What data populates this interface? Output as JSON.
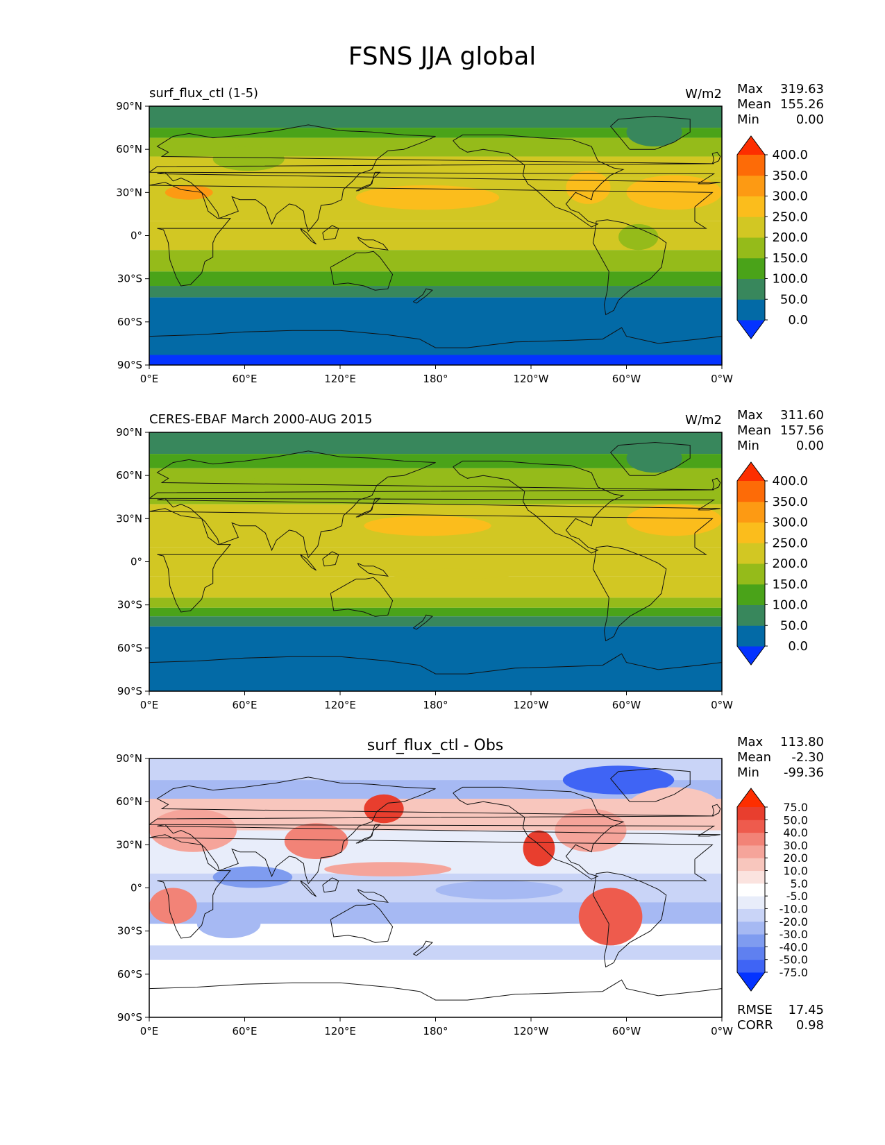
{
  "figure": {
    "title": "FSNS JJA global"
  },
  "chart_data": [
    {
      "type": "heatmap",
      "title": "surf_flux_ctl (1-5)",
      "units": "W/m2",
      "stats": [
        {
          "label": "Max",
          "value": "319.63"
        },
        {
          "label": "Mean",
          "value": "155.26"
        },
        {
          "label": "Min",
          "value": "0.00"
        }
      ],
      "xlim": [
        0,
        360
      ],
      "ylim": [
        -90,
        90
      ],
      "xticks": [
        "0°E",
        "60°E",
        "120°E",
        "180°",
        "120°W",
        "60°W",
        "0°W"
      ],
      "yticks": [
        "90°N",
        "60°N",
        "30°N",
        "0°",
        "30°S",
        "60°S",
        "90°S"
      ],
      "colorbar": {
        "levels": [
          "0.0",
          "50.0",
          "100.0",
          "150.0",
          "200.0",
          "250.0",
          "300.0",
          "350.0",
          "400.0"
        ],
        "colors": [
          "#0433ff",
          "#036aa6",
          "#38875c",
          "#4aa319",
          "#95bb1a",
          "#d2c723",
          "#fbbd1c",
          "#fd9a13",
          "#fd6b07",
          "#fd2e00"
        ]
      },
      "latitude_bands": [
        {
          "lat": [
            75,
            90
          ],
          "value": 80
        },
        {
          "lat": [
            68,
            75
          ],
          "value": 130
        },
        {
          "lat": [
            55,
            68
          ],
          "value": 160
        },
        {
          "lat": [
            40,
            55
          ],
          "value": 205
        },
        {
          "lat": [
            10,
            40
          ],
          "value": 235
        },
        {
          "lat": [
            -10,
            10
          ],
          "value": 205
        },
        {
          "lat": [
            -25,
            -10
          ],
          "value": 175
        },
        {
          "lat": [
            -35,
            -25
          ],
          "value": 130
        },
        {
          "lat": [
            -43,
            -35
          ],
          "value": 80
        },
        {
          "lat": [
            -83,
            -43
          ],
          "value": 30
        },
        {
          "lat": [
            -90,
            -83
          ],
          "value": -5
        }
      ],
      "features": [
        {
          "lon": [
            130,
            220
          ],
          "lat": [
            18,
            35
          ],
          "value": 265
        },
        {
          "lon": [
            300,
            360
          ],
          "lat": [
            18,
            42
          ],
          "value": 265
        },
        {
          "lon": [
            262,
            290
          ],
          "lat": [
            22,
            45
          ],
          "value": 265
        },
        {
          "lon": [
            10,
            40
          ],
          "lat": [
            25,
            35
          ],
          "value": 310
        },
        {
          "lon": [
            40,
            85
          ],
          "lat": [
            45,
            62
          ],
          "value": 160
        },
        {
          "lon": [
            300,
            335
          ],
          "lat": [
            62,
            82
          ],
          "value": 80
        },
        {
          "lon": [
            295,
            320
          ],
          "lat": [
            -10,
            8
          ],
          "value": 175
        }
      ]
    },
    {
      "type": "heatmap",
      "title": "CERES-EBAF March 2000-AUG 2015",
      "units": "W/m2",
      "stats": [
        {
          "label": "Max",
          "value": "311.60"
        },
        {
          "label": "Mean",
          "value": "157.56"
        },
        {
          "label": "Min",
          "value": "0.00"
        }
      ],
      "xlim": [
        0,
        360
      ],
      "ylim": [
        -90,
        90
      ],
      "xticks": [
        "0°E",
        "60°E",
        "120°E",
        "180°",
        "120°W",
        "60°W",
        "0°W"
      ],
      "yticks": [
        "90°N",
        "60°N",
        "30°N",
        "0°",
        "30°S",
        "60°S",
        "90°S"
      ],
      "colorbar": {
        "levels": [
          "0.0",
          "50.0",
          "100.0",
          "150.0",
          "200.0",
          "250.0",
          "300.0",
          "350.0",
          "400.0"
        ],
        "colors": [
          "#0433ff",
          "#036aa6",
          "#38875c",
          "#4aa319",
          "#95bb1a",
          "#d2c723",
          "#fbbd1c",
          "#fd9a13",
          "#fd6b07",
          "#fd2e00"
        ]
      },
      "latitude_bands": [
        {
          "lat": [
            75,
            90
          ],
          "value": 80
        },
        {
          "lat": [
            65,
            75
          ],
          "value": 130
        },
        {
          "lat": [
            40,
            65
          ],
          "value": 175
        },
        {
          "lat": [
            10,
            40
          ],
          "value": 220
        },
        {
          "lat": [
            -10,
            10
          ],
          "value": 205
        },
        {
          "lat": [
            -25,
            -10
          ],
          "value": 210
        },
        {
          "lat": [
            -32,
            -25
          ],
          "value": 160
        },
        {
          "lat": [
            -38,
            -32
          ],
          "value": 130
        },
        {
          "lat": [
            -45,
            -38
          ],
          "value": 80
        },
        {
          "lat": [
            -90,
            -45
          ],
          "value": 30
        }
      ],
      "features": [
        {
          "lon": [
            135,
            215
          ],
          "lat": [
            18,
            32
          ],
          "value": 265
        },
        {
          "lon": [
            300,
            360
          ],
          "lat": [
            18,
            40
          ],
          "value": 265
        },
        {
          "lon": [
            60,
            100
          ],
          "lat": [
            45,
            60
          ],
          "value": 160
        },
        {
          "lon": [
            300,
            335
          ],
          "lat": [
            62,
            82
          ],
          "value": 80
        },
        {
          "lon": [
            150,
            230
          ],
          "lat": [
            -12,
            -5
          ],
          "value": 220
        }
      ]
    },
    {
      "type": "heatmap",
      "title": "surf_flux_ctl - Obs",
      "stats": [
        {
          "label": "Max",
          "value": "113.80"
        },
        {
          "label": "Mean",
          "value": "-2.30"
        },
        {
          "label": "Min",
          "value": "-99.36"
        }
      ],
      "metrics": [
        {
          "label": "RMSE",
          "value": "17.45"
        },
        {
          "label": "CORR",
          "value": "0.98"
        }
      ],
      "xlim": [
        0,
        360
      ],
      "ylim": [
        -90,
        90
      ],
      "xticks": [
        "0°E",
        "60°E",
        "120°E",
        "180°",
        "120°W",
        "60°W",
        "0°W"
      ],
      "yticks": [
        "90°N",
        "60°N",
        "30°N",
        "0°",
        "30°S",
        "60°S",
        "90°S"
      ],
      "colorbar": {
        "levels": [
          "-75.0",
          "-50.0",
          "-40.0",
          "-30.0",
          "-20.0",
          "-10.0",
          "-5.0",
          "5.0",
          "10.0",
          "20.0",
          "30.0",
          "40.0",
          "50.0",
          "75.0"
        ],
        "colors": [
          "#0433ff",
          "#3f64f5",
          "#5f80f0",
          "#7f9cf0",
          "#a6b9f3",
          "#c9d4f7",
          "#e8edfa",
          "#ffffff",
          "#fbe3df",
          "#f8c6bd",
          "#f5a49a",
          "#f28377",
          "#ee5b4d",
          "#e83e2e",
          "#fd2e00"
        ]
      },
      "latitude_bands": [
        {
          "lat": [
            75,
            90
          ],
          "value": -15
        },
        {
          "lat": [
            62,
            75
          ],
          "value": -30
        },
        {
          "lat": [
            40,
            62
          ],
          "value": 15
        },
        {
          "lat": [
            10,
            40
          ],
          "value": -8
        },
        {
          "lat": [
            -10,
            10
          ],
          "value": -12
        },
        {
          "lat": [
            -25,
            -10
          ],
          "value": -22
        },
        {
          "lat": [
            -40,
            -25
          ],
          "value": 0
        },
        {
          "lat": [
            -50,
            -40
          ],
          "value": -15
        },
        {
          "lat": [
            -90,
            -50
          ],
          "value": 0
        }
      ],
      "features": [
        {
          "lon": [
            0,
            55
          ],
          "lat": [
            25,
            55
          ],
          "value": 25
        },
        {
          "lon": [
            85,
            125
          ],
          "lat": [
            20,
            45
          ],
          "value": 30
        },
        {
          "lon": [
            135,
            160
          ],
          "lat": [
            45,
            65
          ],
          "value": 60
        },
        {
          "lon": [
            110,
            190
          ],
          "lat": [
            8,
            18
          ],
          "value": 22
        },
        {
          "lon": [
            235,
            255
          ],
          "lat": [
            15,
            40
          ],
          "value": 60
        },
        {
          "lon": [
            255,
            300
          ],
          "lat": [
            25,
            55
          ],
          "value": 20
        },
        {
          "lon": [
            270,
            310
          ],
          "lat": [
            -40,
            0
          ],
          "value": 45
        },
        {
          "lon": [
            0,
            30
          ],
          "lat": [
            -25,
            0
          ],
          "value": 35
        },
        {
          "lon": [
            180,
            260
          ],
          "lat": [
            -8,
            5
          ],
          "value": -30
        },
        {
          "lon": [
            40,
            90
          ],
          "lat": [
            0,
            15
          ],
          "value": -40
        },
        {
          "lon": [
            260,
            330
          ],
          "lat": [
            65,
            85
          ],
          "value": -55
        },
        {
          "lon": [
            30,
            70
          ],
          "lat": [
            -35,
            -15
          ],
          "value": -30
        },
        {
          "lon": [
            300,
            360
          ],
          "lat": [
            40,
            70
          ],
          "value": 15
        }
      ]
    }
  ]
}
